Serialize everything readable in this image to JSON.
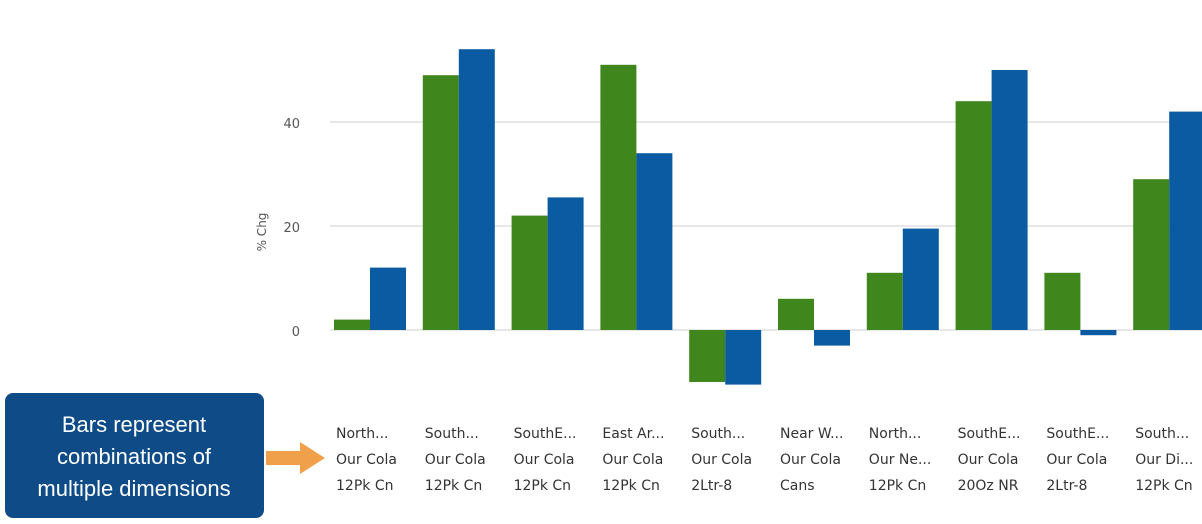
{
  "chart_data": {
    "type": "bar",
    "ylabel": "% Chg",
    "ylim": [
      -12,
      54
    ],
    "yticks": [
      0,
      20,
      40
    ],
    "grid": true,
    "categories": [
      [
        "North...",
        "Our Cola",
        "12Pk Cn"
      ],
      [
        "South...",
        "Our Cola",
        "12Pk Cn"
      ],
      [
        "SouthE...",
        "Our Cola",
        "12Pk Cn"
      ],
      [
        "East Ar...",
        "Our Cola",
        "12Pk Cn"
      ],
      [
        "South...",
        "Our Cola",
        "2Ltr-8"
      ],
      [
        "Near W...",
        "Our Cola",
        "Cans"
      ],
      [
        "North...",
        "Our Ne...",
        "12Pk Cn"
      ],
      [
        "SouthE...",
        "Our Cola",
        "20Oz NR"
      ],
      [
        "SouthE...",
        "Our Cola",
        "2Ltr-8"
      ],
      [
        "South...",
        "Our Di...",
        "12Pk Cn"
      ]
    ],
    "series": [
      {
        "color": "#3f861c",
        "values": [
          2,
          49,
          22,
          51,
          -10,
          6,
          11,
          44,
          11,
          29
        ]
      },
      {
        "color": "#0b5ba3",
        "values": [
          12,
          54,
          25.5,
          34,
          -10.5,
          -3,
          19.5,
          50,
          -1,
          42
        ]
      }
    ]
  },
  "callout": {
    "lines": [
      "Bars represent",
      "combinations of",
      "multiple dimensions"
    ],
    "box_color": "#0f4c87",
    "arrow_color": "#f0a04b"
  }
}
